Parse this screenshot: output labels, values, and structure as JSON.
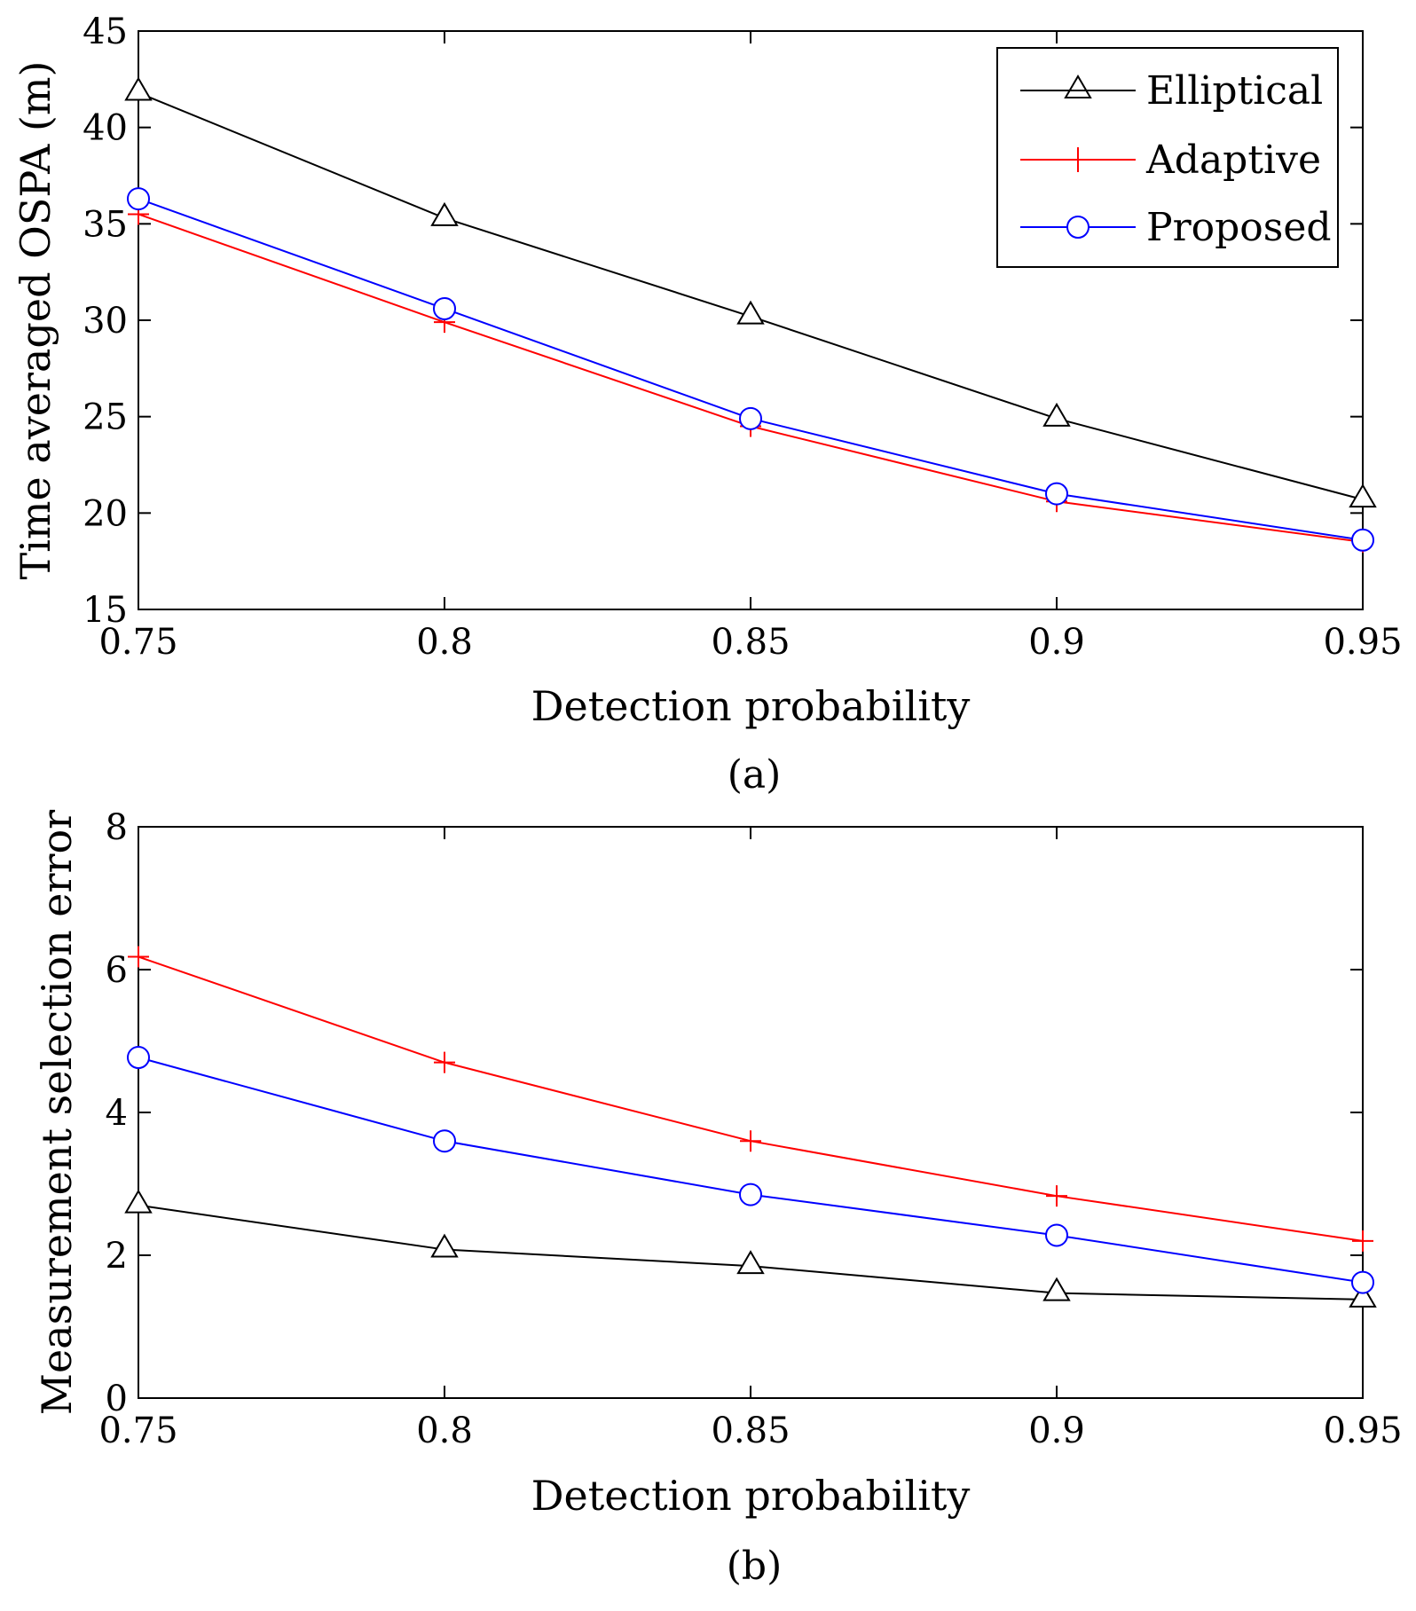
{
  "chart_data": [
    {
      "type": "line",
      "panel_caption": "(a)",
      "title": "",
      "xlabel": "Detection probability",
      "ylabel": "Time averaged OSPA (m)",
      "x": [
        0.75,
        0.8,
        0.85,
        0.9,
        0.95
      ],
      "x_tick_labels": [
        "0.75",
        "0.8",
        "0.85",
        "0.9",
        "0.95"
      ],
      "xlim": [
        0.75,
        0.95
      ],
      "ylim": [
        15,
        45
      ],
      "y_ticks": [
        15,
        20,
        25,
        30,
        35,
        40,
        45
      ],
      "y_tick_labels": [
        "15",
        "20",
        "25",
        "30",
        "35",
        "40",
        "45"
      ],
      "grid": false,
      "legend": {
        "placement": "top-right",
        "entries": [
          "Elliptical",
          "Adaptive",
          "Proposed"
        ]
      },
      "series": [
        {
          "name": "Elliptical",
          "color": "#000000",
          "marker": "triangle",
          "values": [
            41.8,
            35.3,
            30.2,
            24.9,
            20.7
          ]
        },
        {
          "name": "Adaptive",
          "color": "#ff0000",
          "marker": "plus",
          "values": [
            35.5,
            29.9,
            24.5,
            20.6,
            18.5
          ]
        },
        {
          "name": "Proposed",
          "color": "#0000ff",
          "marker": "circle",
          "values": [
            36.3,
            30.6,
            24.9,
            21.0,
            18.6
          ]
        }
      ]
    },
    {
      "type": "line",
      "panel_caption": "(b)",
      "title": "",
      "xlabel": "Detection probability",
      "ylabel": "Measurement selection error",
      "x": [
        0.75,
        0.8,
        0.85,
        0.9,
        0.95
      ],
      "x_tick_labels": [
        "0.75",
        "0.8",
        "0.85",
        "0.9",
        "0.95"
      ],
      "xlim": [
        0.75,
        0.95
      ],
      "ylim": [
        0,
        8
      ],
      "y_ticks": [
        0,
        2,
        4,
        6,
        8
      ],
      "y_tick_labels": [
        "0",
        "2",
        "4",
        "6",
        "8"
      ],
      "grid": false,
      "legend": null,
      "series": [
        {
          "name": "Elliptical",
          "color": "#000000",
          "marker": "triangle",
          "values": [
            2.7,
            2.08,
            1.85,
            1.47,
            1.38
          ]
        },
        {
          "name": "Adaptive",
          "color": "#ff0000",
          "marker": "plus",
          "values": [
            6.18,
            4.7,
            3.6,
            2.83,
            2.2
          ]
        },
        {
          "name": "Proposed",
          "color": "#0000ff",
          "marker": "circle",
          "values": [
            4.77,
            3.6,
            2.85,
            2.28,
            1.62
          ]
        }
      ]
    }
  ]
}
